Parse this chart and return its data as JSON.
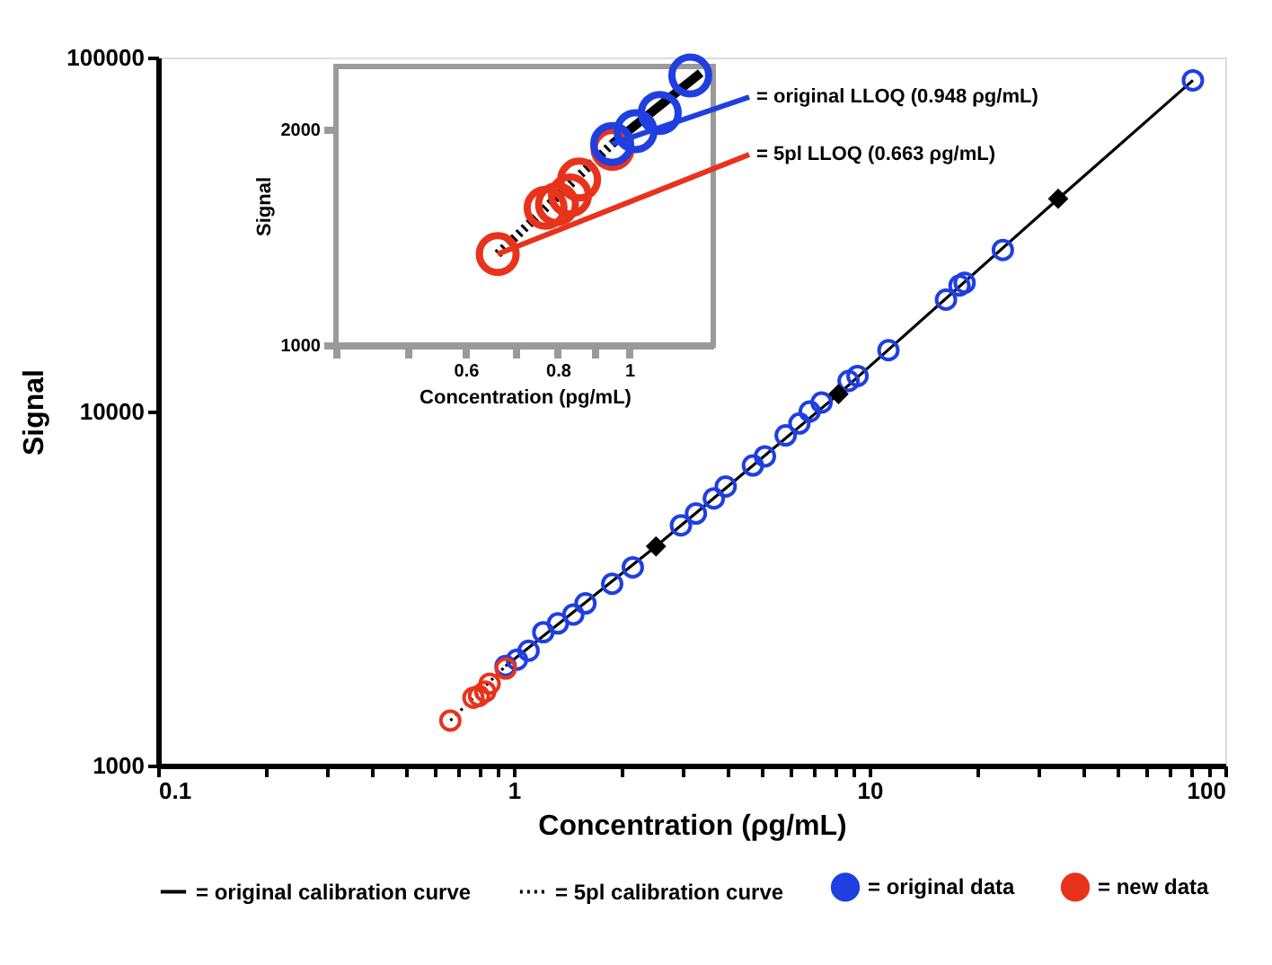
{
  "chart_data": [
    {
      "type": "line",
      "xlabel": "Concentration (ρg/mL)",
      "ylabel": "Signal",
      "log": "xy",
      "xlim": [
        0.1,
        100
      ],
      "ylim": [
        1000,
        100000
      ],
      "xticks": [
        0.1,
        {
          "value": 0.2,
          "label": null
        },
        {
          "value": 0.3,
          "label": null
        },
        {
          "value": 0.4,
          "label": null
        },
        {
          "value": 0.5,
          "label": null
        },
        {
          "value": 0.6,
          "label": null
        },
        {
          "value": 0.7,
          "label": null
        },
        {
          "value": 0.8,
          "label": null
        },
        {
          "value": 0.9,
          "label": null
        },
        1,
        {
          "value": 2,
          "label": null
        },
        {
          "value": 3,
          "label": null
        },
        {
          "value": 4,
          "label": null
        },
        {
          "value": 5,
          "label": null
        },
        {
          "value": 6,
          "label": null
        },
        {
          "value": 7,
          "label": null
        },
        {
          "value": 8,
          "label": null
        },
        {
          "value": 9,
          "label": null
        },
        10,
        {
          "value": 20,
          "label": null
        },
        {
          "value": 30,
          "label": null
        },
        {
          "value": 40,
          "label": null
        },
        {
          "value": 50,
          "label": null
        },
        {
          "value": 60,
          "label": null
        },
        {
          "value": 70,
          "label": null
        },
        {
          "value": 80,
          "label": null
        },
        {
          "value": 90,
          "label": null
        },
        100
      ],
      "yticks": [
        1000,
        10000,
        100000
      ],
      "legend": "bottom",
      "series": [
        {
          "name": "= original calibration curve",
          "color": "#000000",
          "line_style": "solid",
          "x": [
            0.948,
            2.51,
            8.18,
            33.9,
            81.1
          ],
          "values": [
            1910,
            4160,
            11200,
            39900,
            86200
          ]
        },
        {
          "name": "= 5pl calibration curve",
          "color": "#000000",
          "line_style": "dotted",
          "x": [
            0.663,
            0.948
          ],
          "values": [
            1340,
            1910
          ]
        },
        {
          "name": "= original data",
          "type": "scatter",
          "color": "#1f3fe0",
          "marker": "circle",
          "x": [
            0.948,
            1.02,
            1.1,
            1.21,
            1.33,
            1.47,
            1.59,
            1.89,
            2.16,
            2.95,
            3.25,
            3.65,
            3.94,
            4.7,
            5.08,
            5.81,
            6.35,
            6.79,
            7.33,
            8.73,
            9.25,
            11.3,
            16.4,
            17.9,
            18.5,
            23.7,
            81.1
          ],
          "values": [
            1910,
            1990,
            2110,
            2380,
            2520,
            2670,
            2870,
            3260,
            3630,
            4770,
            5150,
            5680,
            6140,
            7040,
            7470,
            8560,
            9250,
            10000,
            10600,
            12200,
            12600,
            14900,
            20700,
            22700,
            23100,
            28600,
            86200
          ]
        },
        {
          "name": "= new data",
          "type": "scatter",
          "color": "#e8331c",
          "marker": "circle",
          "x": [
            0.663,
            0.77,
            0.798,
            0.831,
            0.855,
            0.949
          ],
          "values": [
            1340,
            1555,
            1573,
            1618,
            1703,
            1879
          ]
        },
        {
          "type": "scatter",
          "color": "#000000",
          "marker": "diamond",
          "x": [
            2.51,
            8.18,
            33.9
          ],
          "values": [
            4160,
            11200,
            39900
          ]
        }
      ]
    },
    {
      "type": "line",
      "xlabel": "Concentration (pg/mL)",
      "ylabel": "Signal",
      "log": "xy",
      "xlim": [
        0.4,
        1.3
      ],
      "ylim": [
        1000,
        2450
      ],
      "xticks": [
        {
          "value": 0.4,
          "label": null
        },
        {
          "value": 0.5,
          "label": null
        },
        0.6,
        {
          "value": 0.7,
          "label": null
        },
        0.8,
        {
          "value": 0.9,
          "label": null
        },
        1
      ],
      "yticks": [
        1000,
        2000
      ],
      "annotations": [
        {
          "text": "= original LLOQ (0.948 ρg/mL)",
          "x": 0.948,
          "y": 1910
        },
        {
          "text": "= 5pl LLOQ (0.663 ρg/mL)",
          "x": 0.663,
          "y": 1340
        }
      ],
      "series": [
        {
          "color": "#000000",
          "line_style": "dotted",
          "x": [
            0.663,
            0.948
          ],
          "values": [
            1340,
            1910
          ]
        },
        {
          "color": "#000000",
          "line_style": "solid",
          "x": [
            0.948,
            1.25
          ],
          "values": [
            1910,
            2400
          ]
        },
        {
          "type": "scatter",
          "color": "#e8331c",
          "marker": "circle",
          "x": [
            0.663,
            0.77,
            0.798,
            0.831,
            0.855,
            0.949
          ],
          "values": [
            1340,
            1555,
            1573,
            1618,
            1703,
            1879
          ]
        },
        {
          "type": "scatter",
          "color": "#1f3fe0",
          "marker": "circle",
          "x": [
            0.948,
            1.02,
            1.1,
            1.21
          ],
          "values": [
            1910,
            1990,
            2110,
            2380
          ]
        }
      ]
    }
  ]
}
